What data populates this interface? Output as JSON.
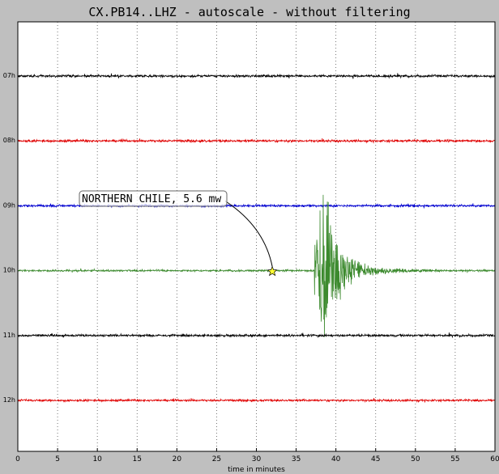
{
  "title": "CX.PB14..LHZ - autoscale - without filtering",
  "chart_data": {
    "type": "line",
    "title": "CX.PB14..LHZ - autoscale - without filtering",
    "xlabel": "time in minutes",
    "ylabel": "",
    "xlim": [
      0,
      60
    ],
    "x_ticks": [
      "0",
      "5",
      "10",
      "15",
      "20",
      "25",
      "30",
      "35",
      "40",
      "45",
      "50",
      "55",
      "60"
    ],
    "grid": true,
    "series": [
      {
        "name": "07h",
        "label": "07h",
        "color": "#000000",
        "noise": 1.0
      },
      {
        "name": "08h",
        "label": "08h",
        "color": "#e00000",
        "noise": 1.0
      },
      {
        "name": "09h",
        "label": "09h",
        "color": "#0000d0",
        "noise": 1.0
      },
      {
        "name": "10h",
        "label": "10h",
        "color": "#3c8a2e",
        "noise": 0.8
      },
      {
        "name": "11h",
        "label": "11h",
        "color": "#000000",
        "noise": 1.0
      },
      {
        "name": "12h",
        "label": "12h",
        "color": "#e00000",
        "noise": 0.9
      }
    ],
    "event": {
      "text": "NORTHERN CHILE, 5.6 mw",
      "trace": "10h",
      "time_min": 32.0,
      "arrival_start_min": 37.3,
      "arrival_peak_min": 38.5,
      "coda_end_min": 44.0,
      "marker": "star",
      "marker_color": "#ffff33"
    }
  }
}
